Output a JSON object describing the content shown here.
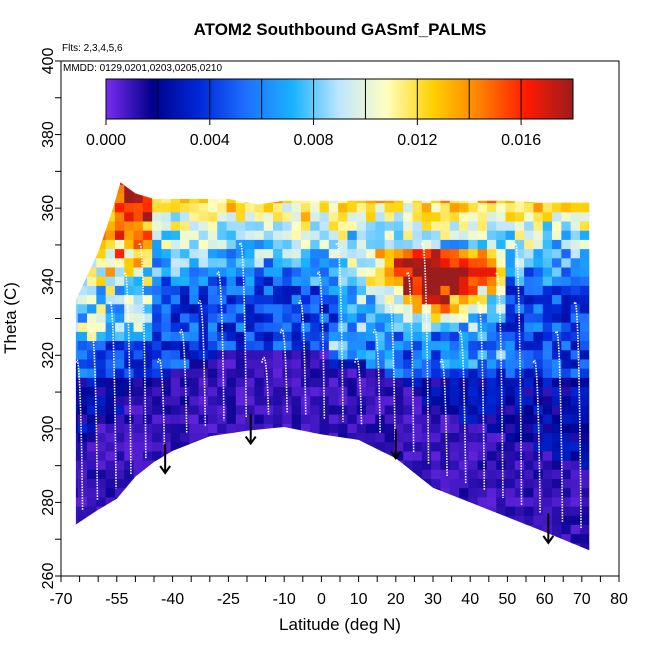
{
  "chart_data": {
    "type": "heatmap",
    "title": "ATOM2 Southbound GASmf_PALMS",
    "annotations": {
      "flights": "Flts: 2,3,4,5,6",
      "dates": "MMDD: 0129,0201,0203,0205,0210"
    },
    "xlabel": "Latitude (deg N)",
    "ylabel": "Theta (C)",
    "xlim": [
      -70,
      80
    ],
    "ylim": [
      260,
      400
    ],
    "x_ticks": [
      "-70",
      "-55",
      "-40",
      "-25",
      "-10",
      "0",
      "10",
      "20",
      "30",
      "40",
      "50",
      "60",
      "70",
      "80"
    ],
    "y_ticks": [
      "260",
      "280",
      "300",
      "320",
      "340",
      "360",
      "380",
      "400"
    ],
    "colorbar": {
      "range": [
        0,
        0.018
      ],
      "labels": [
        "0.000",
        "0.004",
        "0.008",
        "0.012",
        "0.016"
      ],
      "colors": [
        "#7a2cf0",
        "#00008b",
        "#0028d8",
        "#1e6fff",
        "#1ab2ff",
        "#bfe6ff",
        "#ffffc0",
        "#ffd000",
        "#ff8000",
        "#ff1a00",
        "#9b1c1c"
      ]
    },
    "lower_boundary": [
      [
        -66,
        274
      ],
      [
        -60,
        278
      ],
      [
        -55,
        281
      ],
      [
        -50,
        287
      ],
      [
        -45,
        291
      ],
      [
        -40,
        294
      ],
      [
        -30,
        298
      ],
      [
        -20,
        299.5
      ],
      [
        -10,
        300.5
      ],
      [
        0,
        298.5
      ],
      [
        10,
        297
      ],
      [
        20,
        292
      ],
      [
        30,
        284
      ],
      [
        40,
        280
      ],
      [
        50,
        276
      ],
      [
        60,
        272
      ],
      [
        72,
        267
      ]
    ],
    "upper_boundary": [
      [
        -66,
        335
      ],
      [
        -60,
        348
      ],
      [
        -56,
        360
      ],
      [
        -54,
        367
      ],
      [
        -50,
        364
      ],
      [
        -45,
        362.5
      ],
      [
        -40,
        362.5
      ],
      [
        -25,
        362.5
      ],
      [
        -17,
        361
      ],
      [
        -10,
        362
      ],
      [
        25,
        362
      ],
      [
        30,
        362
      ],
      [
        50,
        362
      ],
      [
        60,
        361.5
      ],
      [
        70,
        361.5
      ]
    ],
    "high_region": {
      "lat_range": [
        5,
        45
      ],
      "theta_range": [
        320,
        348
      ],
      "peak": [
        32,
        340
      ],
      "peak_value": 0.016
    },
    "arrows": [
      [
        -42,
        296
      ],
      [
        -19,
        304
      ],
      [
        20,
        300
      ],
      [
        61,
        277
      ]
    ]
  }
}
